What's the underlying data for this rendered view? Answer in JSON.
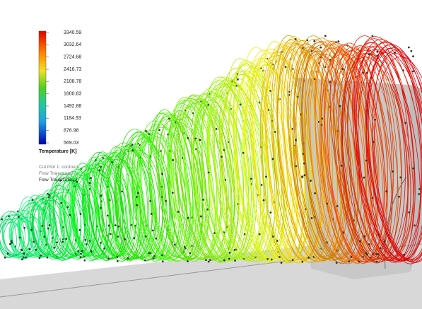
{
  "legend": {
    "ticks": [
      "3340.59",
      "3032.64",
      "2724.68",
      "2416.73",
      "2108.78",
      "1800.83",
      "1492.88",
      "1184.93",
      "876.98",
      "569.03"
    ],
    "title": "Temperature [K]"
  },
  "notes": [
    "Cut Plot 1: contours",
    "Flow Trajectories 1",
    "Flow Trajectories 2"
  ]
}
